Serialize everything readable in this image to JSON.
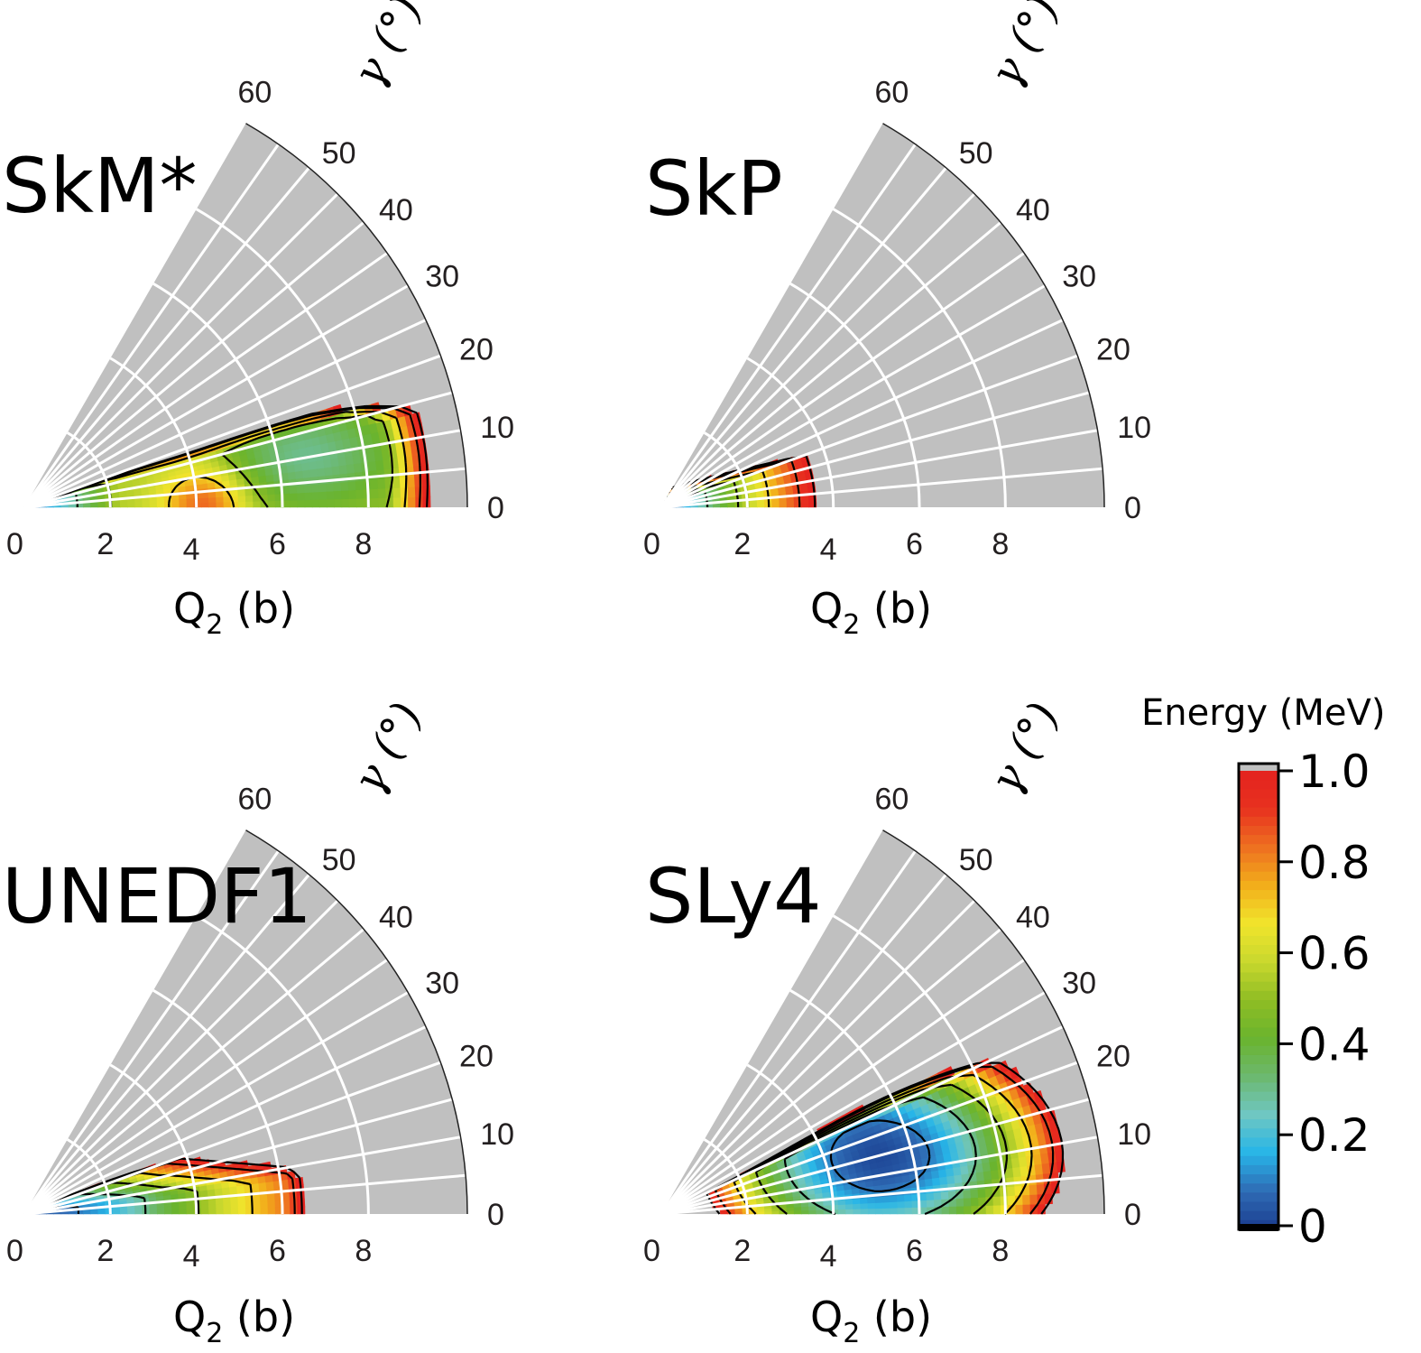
{
  "chart_data": {
    "type": "heatmap",
    "projection": "polar (Q2, gamma) sector",
    "panels": [
      {
        "title": "SkM*",
        "xlabel": "Q2 (b)",
        "glabel": "γ (°)",
        "x_ticks": [
          "0",
          "2",
          "4",
          "6",
          "8"
        ],
        "gamma_ticks": [
          "0",
          "10",
          "20",
          "30",
          "40",
          "50",
          "60"
        ],
        "q2_range": [
          0,
          10.3
        ],
        "gamma_range": [
          0,
          60
        ],
        "minimum": {
          "Q2": 7.0,
          "gamma": 11,
          "energy_MeV": 0.3
        },
        "description": "Broad low-energy valley; local minimum near origin; yellow-orange ridge near Q2≈4, gamma≈0; flat green plateau extending to Q2≈9.5, gamma up to ~20"
      },
      {
        "title": "SkP",
        "xlabel": "Q2 (b)",
        "glabel": "γ (°)",
        "x_ticks": [
          "0",
          "2",
          "4",
          "6",
          "8"
        ],
        "gamma_ticks": [
          "0",
          "10",
          "20",
          "30",
          "40",
          "50",
          "60"
        ],
        "q2_range": [
          0,
          10.3
        ],
        "gamma_range": [
          0,
          60
        ],
        "minimum": {
          "Q2": 0,
          "gamma": 0,
          "energy_MeV": 0.0
        },
        "description": "Spherical minimum; energy rises radially, reaching 1 MeV at Q2≈3.5"
      },
      {
        "title": "UNEDF1",
        "xlabel": "Q2 (b)",
        "glabel": "γ (°)",
        "x_ticks": [
          "0",
          "2",
          "4",
          "6",
          "8"
        ],
        "gamma_ticks": [
          "0",
          "10",
          "20",
          "30",
          "40",
          "50",
          "60"
        ],
        "q2_range": [
          0,
          10.3
        ],
        "gamma_range": [
          0,
          60
        ],
        "minimum": {
          "Q2": 1.5,
          "gamma": 3,
          "energy_MeV": 0.05
        },
        "description": "Soft minimum near Q2≈0–3, gamma≈0; 1 MeV boundary at Q2≈7.2"
      },
      {
        "title": "SLy4",
        "xlabel": "Q2 (b)",
        "glabel": "γ (°)",
        "x_ticks": [
          "0",
          "2",
          "4",
          "6",
          "8"
        ],
        "gamma_ticks": [
          "0",
          "10",
          "20",
          "30",
          "40",
          "50",
          "60"
        ],
        "q2_range": [
          0,
          10.3
        ],
        "gamma_range": [
          0,
          60
        ],
        "minimum": {
          "Q2": 5.2,
          "gamma": 15,
          "energy_MeV": 0.0
        },
        "description": "Triaxial minimum near Q2≈5.2, gamma≈15; 1 MeV boundary from Q2≈1 to Q2≈8.2"
      }
    ],
    "colorbar": {
      "title": "Energy (MeV)",
      "ticks": [
        "0",
        "0.2",
        "0.4",
        "0.6",
        "0.8",
        "1.0"
      ],
      "range": [
        0,
        1.0
      ],
      "colors": [
        "#1a3d8f",
        "#2f6cb5",
        "#27b5e8",
        "#6fc7c2",
        "#6cb86e",
        "#6ab42e",
        "#8fbd24",
        "#c9d82e",
        "#f1e42c",
        "#f2ae1b",
        "#ee7020",
        "#e8321f",
        "#e4221f"
      ],
      "above_range_color": "#c0c0c0"
    },
    "contour_levels_MeV": [
      0.1,
      0.3,
      0.5,
      0.7,
      0.9,
      1.0
    ]
  }
}
